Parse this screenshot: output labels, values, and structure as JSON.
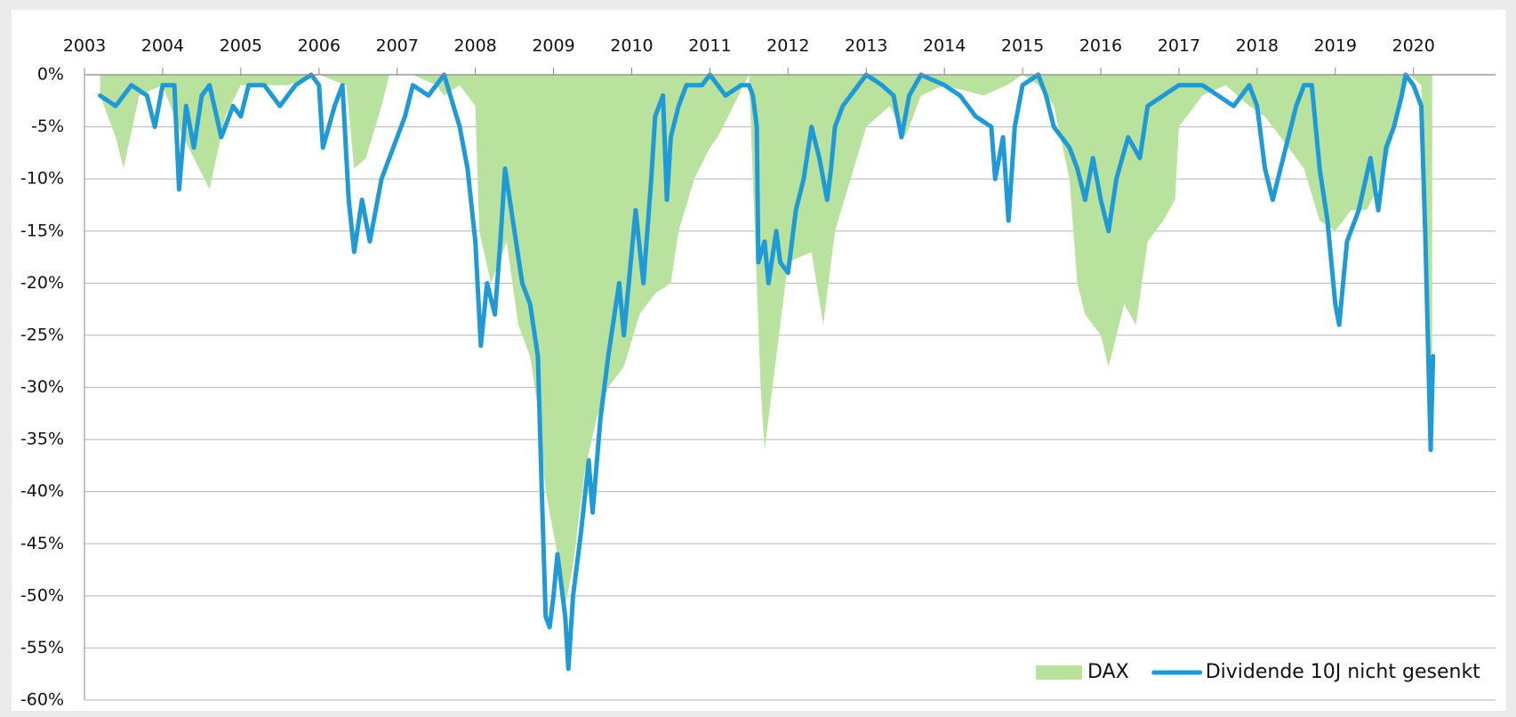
{
  "chart_data": {
    "type": "line",
    "xlim": [
      2003,
      2021.05
    ],
    "xticks": [
      2003,
      2004,
      2005,
      2006,
      2007,
      2008,
      2009,
      2010,
      2011,
      2012,
      2013,
      2014,
      2015,
      2016,
      2017,
      2018,
      2019,
      2020
    ],
    "ylim": [
      -60,
      0
    ],
    "yticks": [
      {
        "value": 0,
        "label": "0%"
      },
      {
        "value": -5,
        "label": "-5%"
      },
      {
        "value": -10,
        "label": "-10%"
      },
      {
        "value": -15,
        "label": "-15%"
      },
      {
        "value": -20,
        "label": "-20%"
      },
      {
        "value": -25,
        "label": "-25%"
      },
      {
        "value": -30,
        "label": "-30%"
      },
      {
        "value": -35,
        "label": "-35%"
      },
      {
        "value": -40,
        "label": "-40%"
      },
      {
        "value": -45,
        "label": "-45%"
      },
      {
        "value": -50,
        "label": "-50%"
      },
      {
        "value": -55,
        "label": "-55%"
      },
      {
        "value": -60,
        "label": "-60%"
      }
    ],
    "grid": true,
    "legend": "lower right",
    "series": [
      {
        "name": "DAX",
        "kind": "area",
        "color": "#b8e29d",
        "x": [
          2003.2,
          2003.4,
          2003.5,
          2003.7,
          2004.0,
          2004.2,
          2004.4,
          2004.6,
          2004.8,
          2005.0,
          2005.4,
          2005.6,
          2006.0,
          2006.35,
          2006.45,
          2006.6,
          2006.8,
          2006.9,
          2007.2,
          2007.5,
          2007.6,
          2007.8,
          2008.0,
          2008.05,
          2008.2,
          2008.4,
          2008.55,
          2008.7,
          2008.8,
          2008.9,
          2009.05,
          2009.15,
          2009.25,
          2009.4,
          2009.55,
          2009.7,
          2009.9,
          2010.1,
          2010.3,
          2010.5,
          2010.6,
          2010.8,
          2011.0,
          2011.1,
          2011.3,
          2011.5,
          2011.55,
          2011.65,
          2011.7,
          2011.85,
          2012.0,
          2012.3,
          2012.45,
          2012.6,
          2012.8,
          2013.0,
          2013.3,
          2013.5,
          2013.7,
          2014.0,
          2014.5,
          2014.8,
          2015.0,
          2015.2,
          2015.4,
          2015.6,
          2015.7,
          2015.8,
          2016.0,
          2016.1,
          2016.3,
          2016.45,
          2016.6,
          2016.8,
          2016.95,
          2017.0,
          2017.3,
          2017.6,
          2017.9,
          2018.1,
          2018.3,
          2018.6,
          2018.8,
          2019.0,
          2019.2,
          2019.4,
          2019.6,
          2019.8,
          2019.95,
          2020.1,
          2020.15,
          2020.22,
          2020.24
        ],
        "values": [
          -2,
          -6,
          -9,
          -2,
          -1,
          -5,
          -8,
          -11,
          -4,
          -1,
          -1,
          -1,
          0,
          -1,
          -9,
          -8,
          -3,
          0,
          0,
          -1,
          -2,
          -1,
          -3,
          -15,
          -20,
          -16,
          -24,
          -27,
          -32,
          -40,
          -46,
          -51,
          -47,
          -38,
          -33,
          -30,
          -28,
          -23,
          -21,
          -20,
          -15,
          -10,
          -7,
          -6,
          -3,
          0,
          -10,
          -30,
          -36,
          -27,
          -18,
          -17,
          -24,
          -15,
          -10,
          -5,
          -3,
          -6,
          -2,
          -1,
          -2,
          -1,
          0,
          -1,
          -3,
          -10,
          -20,
          -23,
          -25,
          -28,
          -22,
          -24,
          -16,
          -14,
          -12,
          -5,
          -2,
          -1,
          -3,
          -4,
          -6,
          -9,
          -14,
          -15,
          -13,
          -13,
          -10,
          -4,
          0,
          -1,
          -20,
          -33,
          -30
        ]
      },
      {
        "name": "Dividende 10J nicht gesenkt",
        "kind": "line",
        "color": "#1f9ad6",
        "x": [
          2003.2,
          2003.4,
          2003.6,
          2003.8,
          2003.9,
          2004.0,
          2004.15,
          2004.21,
          2004.3,
          2004.4,
          2004.5,
          2004.6,
          2004.75,
          2004.9,
          2005.0,
          2005.1,
          2005.3,
          2005.5,
          2005.7,
          2005.9,
          2006.0,
          2006.05,
          2006.2,
          2006.3,
          2006.38,
          2006.45,
          2006.55,
          2006.65,
          2006.8,
          2007.0,
          2007.1,
          2007.2,
          2007.4,
          2007.5,
          2007.6,
          2007.8,
          2007.9,
          2008.0,
          2008.07,
          2008.15,
          2008.25,
          2008.32,
          2008.38,
          2008.5,
          2008.6,
          2008.7,
          2008.8,
          2008.85,
          2008.9,
          2008.95,
          2009.0,
          2009.05,
          2009.15,
          2009.19,
          2009.25,
          2009.35,
          2009.45,
          2009.5,
          2009.6,
          2009.7,
          2009.8,
          2009.84,
          2009.9,
          2010.0,
          2010.05,
          2010.15,
          2010.25,
          2010.3,
          2010.4,
          2010.45,
          2010.5,
          2010.6,
          2010.7,
          2010.9,
          2011.0,
          2011.2,
          2011.4,
          2011.5,
          2011.55,
          2011.6,
          2011.62,
          2011.7,
          2011.75,
          2011.85,
          2011.9,
          2012.0,
          2012.1,
          2012.2,
          2012.3,
          2012.4,
          2012.5,
          2012.55,
          2012.6,
          2012.7,
          2012.8,
          2013.0,
          2013.2,
          2013.35,
          2013.45,
          2013.55,
          2013.7,
          2014.0,
          2014.2,
          2014.4,
          2014.6,
          2014.65,
          2014.75,
          2014.82,
          2014.9,
          2015.0,
          2015.2,
          2015.3,
          2015.4,
          2015.5,
          2015.6,
          2015.7,
          2015.8,
          2015.9,
          2016.0,
          2016.1,
          2016.2,
          2016.35,
          2016.5,
          2016.6,
          2016.8,
          2017.0,
          2017.3,
          2017.5,
          2017.7,
          2017.9,
          2018.0,
          2018.1,
          2018.2,
          2018.3,
          2018.5,
          2018.6,
          2018.7,
          2018.8,
          2018.9,
          2019.0,
          2019.05,
          2019.15,
          2019.3,
          2019.45,
          2019.55,
          2019.65,
          2019.75,
          2019.85,
          2019.9,
          2020.0,
          2020.1,
          2020.15,
          2020.22,
          2020.25
        ],
        "values": [
          -2,
          -3,
          -1,
          -2,
          -5,
          -1,
          -1,
          -11,
          -3,
          -7,
          -2,
          -1,
          -6,
          -3,
          -4,
          -1,
          -1,
          -3,
          -1,
          0,
          -1,
          -7,
          -3,
          -1,
          -12,
          -17,
          -12,
          -16,
          -10,
          -6,
          -4,
          -1,
          -2,
          -1,
          0,
          -5,
          -9,
          -16,
          -26,
          -20,
          -23,
          -16,
          -9,
          -15,
          -20,
          -22,
          -27,
          -40,
          -52,
          -53,
          -50,
          -46,
          -52,
          -57,
          -50,
          -44,
          -37,
          -42,
          -33,
          -27,
          -22,
          -20,
          -25,
          -17,
          -13,
          -20,
          -10,
          -4,
          -2,
          -12,
          -6,
          -3,
          -1,
          -1,
          0,
          -2,
          -1,
          -1,
          -2,
          -5,
          -18,
          -16,
          -20,
          -15,
          -18,
          -19,
          -13,
          -10,
          -5,
          -8,
          -12,
          -9,
          -5,
          -3,
          -2,
          0,
          -1,
          -2,
          -6,
          -2,
          0,
          -1,
          -2,
          -4,
          -5,
          -10,
          -6,
          -14,
          -5,
          -1,
          0,
          -2,
          -5,
          -6,
          -7,
          -9,
          -12,
          -8,
          -12,
          -15,
          -10,
          -6,
          -8,
          -3,
          -2,
          -1,
          -1,
          -2,
          -3,
          -1,
          -3,
          -9,
          -12,
          -9,
          -3,
          -1,
          -1,
          -9,
          -14,
          -22,
          -24,
          -16,
          -13,
          -8,
          -13,
          -7,
          -5,
          -2,
          0,
          -1,
          -3,
          -15,
          -36,
          -27
        ]
      }
    ]
  }
}
